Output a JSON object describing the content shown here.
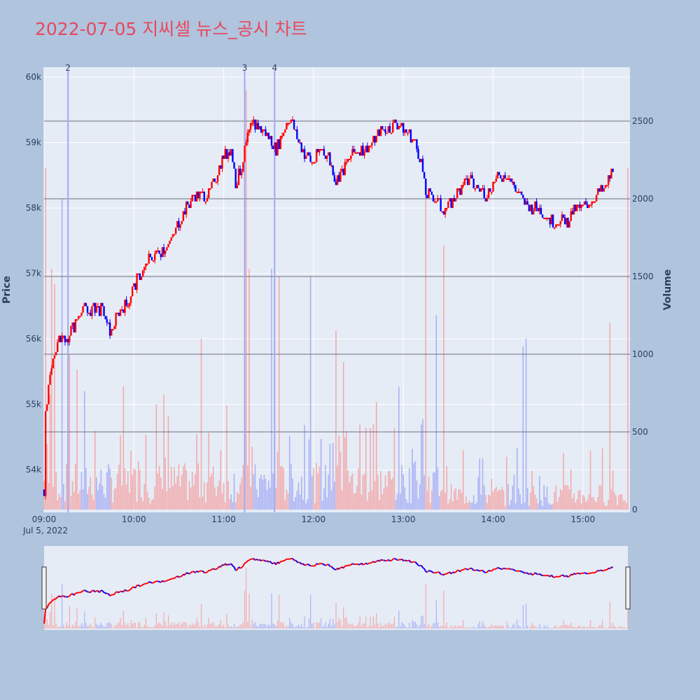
{
  "title": "2022-07-05 지씨셀 뉴스_공시 차트",
  "colors": {
    "background": "#b0c4de",
    "plot_bg": "#e5ecf6",
    "up": "#ff0000",
    "down": "#0000ff",
    "title": "#e8485e",
    "hline": "#6e6e7e"
  },
  "chart_data": {
    "type": "candlestick+bar",
    "title": "2022-07-05 지씨셀 뉴스_공시 차트",
    "y_axis": {
      "label": "Price",
      "range": [
        53350,
        60150
      ],
      "ticks": [
        54000,
        55000,
        56000,
        57000,
        58000,
        59000,
        60000
      ],
      "tick_labels": [
        "54k",
        "55k",
        "56k",
        "57k",
        "58k",
        "59k",
        "60k"
      ]
    },
    "y2_axis": {
      "label": "Volume",
      "range": [
        0,
        2800
      ],
      "ticks": [
        0,
        500,
        1000,
        1500,
        2000,
        2500
      ],
      "tick_labels": [
        "0",
        "500",
        "1000",
        "1500",
        "2000",
        "2500"
      ]
    },
    "x_axis": {
      "range": [
        "09:00",
        "15:30"
      ],
      "ticks": [
        "09:00",
        "10:00",
        "11:00",
        "12:00",
        "13:00",
        "14:00",
        "15:00"
      ],
      "sub_label": "Jul 5, 2022"
    },
    "horizontal_lines": [
      500,
      1000,
      1500,
      2000,
      2500
    ],
    "news_markers": [
      {
        "label": "2",
        "time": "09:16"
      },
      {
        "label": "3",
        "time": "11:14"
      },
      {
        "label": "4",
        "time": "11:34"
      }
    ],
    "price_anchors": [
      [
        "09:00",
        53700
      ],
      [
        "09:01",
        54800
      ],
      [
        "09:03",
        55200
      ],
      [
        "09:05",
        55500
      ],
      [
        "09:07",
        55800
      ],
      [
        "09:09",
        56000
      ],
      [
        "09:12",
        56100
      ],
      [
        "09:14",
        55900
      ],
      [
        "09:17",
        56100
      ],
      [
        "09:20",
        56200
      ],
      [
        "09:25",
        56500
      ],
      [
        "09:30",
        56400
      ],
      [
        "09:35",
        56500
      ],
      [
        "09:40",
        56400
      ],
      [
        "09:42",
        56200
      ],
      [
        "09:45",
        56100
      ],
      [
        "09:48",
        56300
      ],
      [
        "09:52",
        56500
      ],
      [
        "09:55",
        56500
      ],
      [
        "10:00",
        56800
      ],
      [
        "10:05",
        57000
      ],
      [
        "10:10",
        57200
      ],
      [
        "10:15",
        57300
      ],
      [
        "10:20",
        57400
      ],
      [
        "10:25",
        57500
      ],
      [
        "10:30",
        57800
      ],
      [
        "10:35",
        58000
      ],
      [
        "10:40",
        58200
      ],
      [
        "10:45",
        58200
      ],
      [
        "10:50",
        58200
      ],
      [
        "10:55",
        58500
      ],
      [
        "11:00",
        58800
      ],
      [
        "11:05",
        58900
      ],
      [
        "11:08",
        58400
      ],
      [
        "11:12",
        58600
      ],
      [
        "11:16",
        59100
      ],
      [
        "11:20",
        59300
      ],
      [
        "11:25",
        59200
      ],
      [
        "11:30",
        59100
      ],
      [
        "11:35",
        58900
      ],
      [
        "11:40",
        59200
      ],
      [
        "11:44",
        59400
      ],
      [
        "11:50",
        59000
      ],
      [
        "11:55",
        58800
      ],
      [
        "12:00",
        58700
      ],
      [
        "12:05",
        58900
      ],
      [
        "12:10",
        58800
      ],
      [
        "12:15",
        58400
      ],
      [
        "12:20",
        58600
      ],
      [
        "12:25",
        58800
      ],
      [
        "12:30",
        58900
      ],
      [
        "12:35",
        58900
      ],
      [
        "12:40",
        59000
      ],
      [
        "12:45",
        59200
      ],
      [
        "12:50",
        59200
      ],
      [
        "12:55",
        59300
      ],
      [
        "13:00",
        59200
      ],
      [
        "13:05",
        59100
      ],
      [
        "13:08",
        59000
      ],
      [
        "13:12",
        58700
      ],
      [
        "13:15",
        58200
      ],
      [
        "13:20",
        58200
      ],
      [
        "13:25",
        58000
      ],
      [
        "13:30",
        58000
      ],
      [
        "13:35",
        58200
      ],
      [
        "13:40",
        58400
      ],
      [
        "13:45",
        58400
      ],
      [
        "13:50",
        58300
      ],
      [
        "13:55",
        58200
      ],
      [
        "14:00",
        58400
      ],
      [
        "14:05",
        58500
      ],
      [
        "14:10",
        58500
      ],
      [
        "14:15",
        58300
      ],
      [
        "14:20",
        58100
      ],
      [
        "14:25",
        58000
      ],
      [
        "14:30",
        58000
      ],
      [
        "14:35",
        57900
      ],
      [
        "14:40",
        57800
      ],
      [
        "14:45",
        57800
      ],
      [
        "14:50",
        57800
      ],
      [
        "14:55",
        58000
      ],
      [
        "15:00",
        58000
      ],
      [
        "15:05",
        58100
      ],
      [
        "15:10",
        58200
      ],
      [
        "15:15",
        58300
      ],
      [
        "15:20",
        58600
      ]
    ],
    "volume_spikes": [
      [
        "09:01",
        2200
      ],
      [
        "09:05",
        1550
      ],
      [
        "09:07",
        1450
      ],
      [
        "09:12",
        2000
      ],
      [
        "09:17",
        1000
      ],
      [
        "09:22",
        900
      ],
      [
        "10:45",
        1100
      ],
      [
        "11:14",
        1700
      ],
      [
        "11:15",
        2700
      ],
      [
        "11:17",
        1550
      ],
      [
        "11:32",
        1550
      ],
      [
        "11:37",
        1500
      ],
      [
        "11:58",
        1500
      ],
      [
        "12:15",
        1150
      ],
      [
        "12:20",
        950
      ],
      [
        "13:15",
        2000
      ],
      [
        "13:22",
        1250
      ],
      [
        "13:27",
        1700
      ],
      [
        "14:20",
        1050
      ],
      [
        "14:22",
        1100
      ],
      [
        "15:18",
        1200
      ],
      [
        "15:30",
        2200
      ]
    ]
  }
}
